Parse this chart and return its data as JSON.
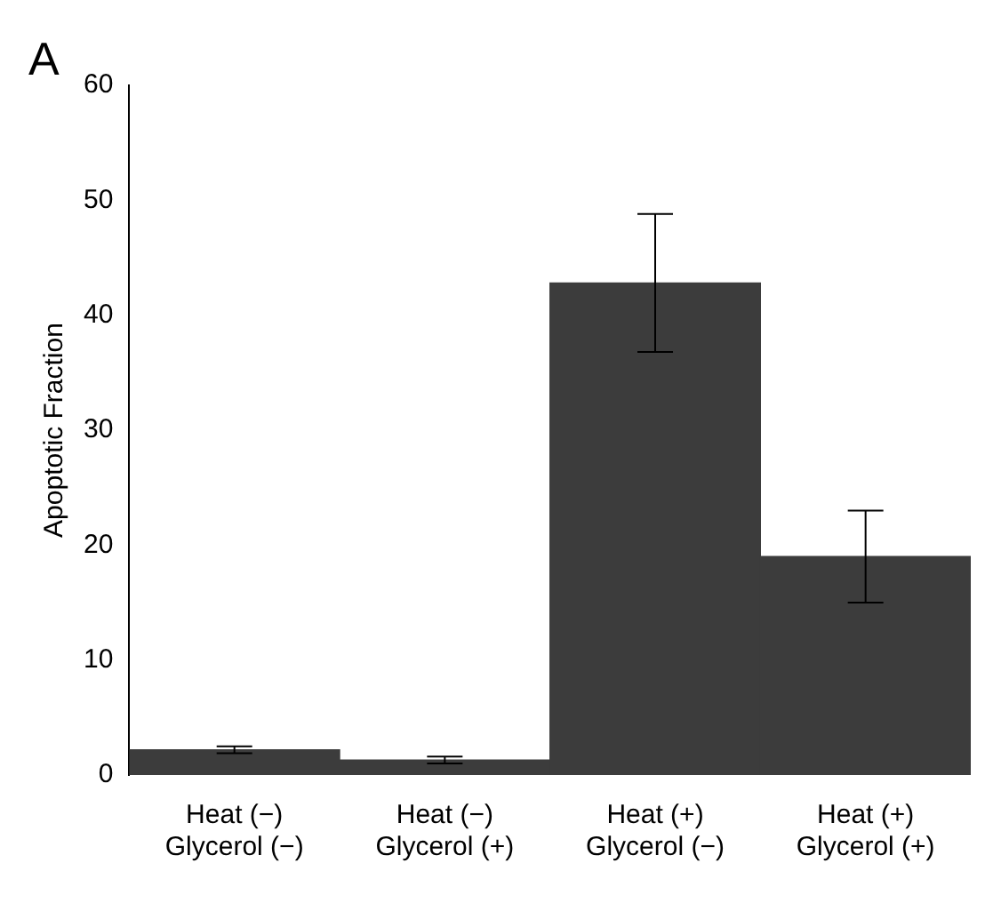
{
  "chart_data": {
    "type": "bar",
    "annotations": [
      "A"
    ],
    "ylabel": "Apoptotic Fraction",
    "categories": [
      "Heat (−)\nGlycerol (−)",
      "Heat (−)\nGlycerol (+)",
      "Heat (+)\nGlycerol (−)",
      "Heat (+)\nGlycerol (+)"
    ],
    "values": [
      2.2,
      1.3,
      42.8,
      19
    ],
    "errors": [
      0.3,
      0.3,
      6,
      4
    ],
    "color": "#3c3c3c",
    "ylim": [
      0,
      60
    ],
    "yticks": [
      0,
      10,
      20,
      30,
      40,
      50,
      60
    ],
    "grid": false,
    "legend": false
  }
}
